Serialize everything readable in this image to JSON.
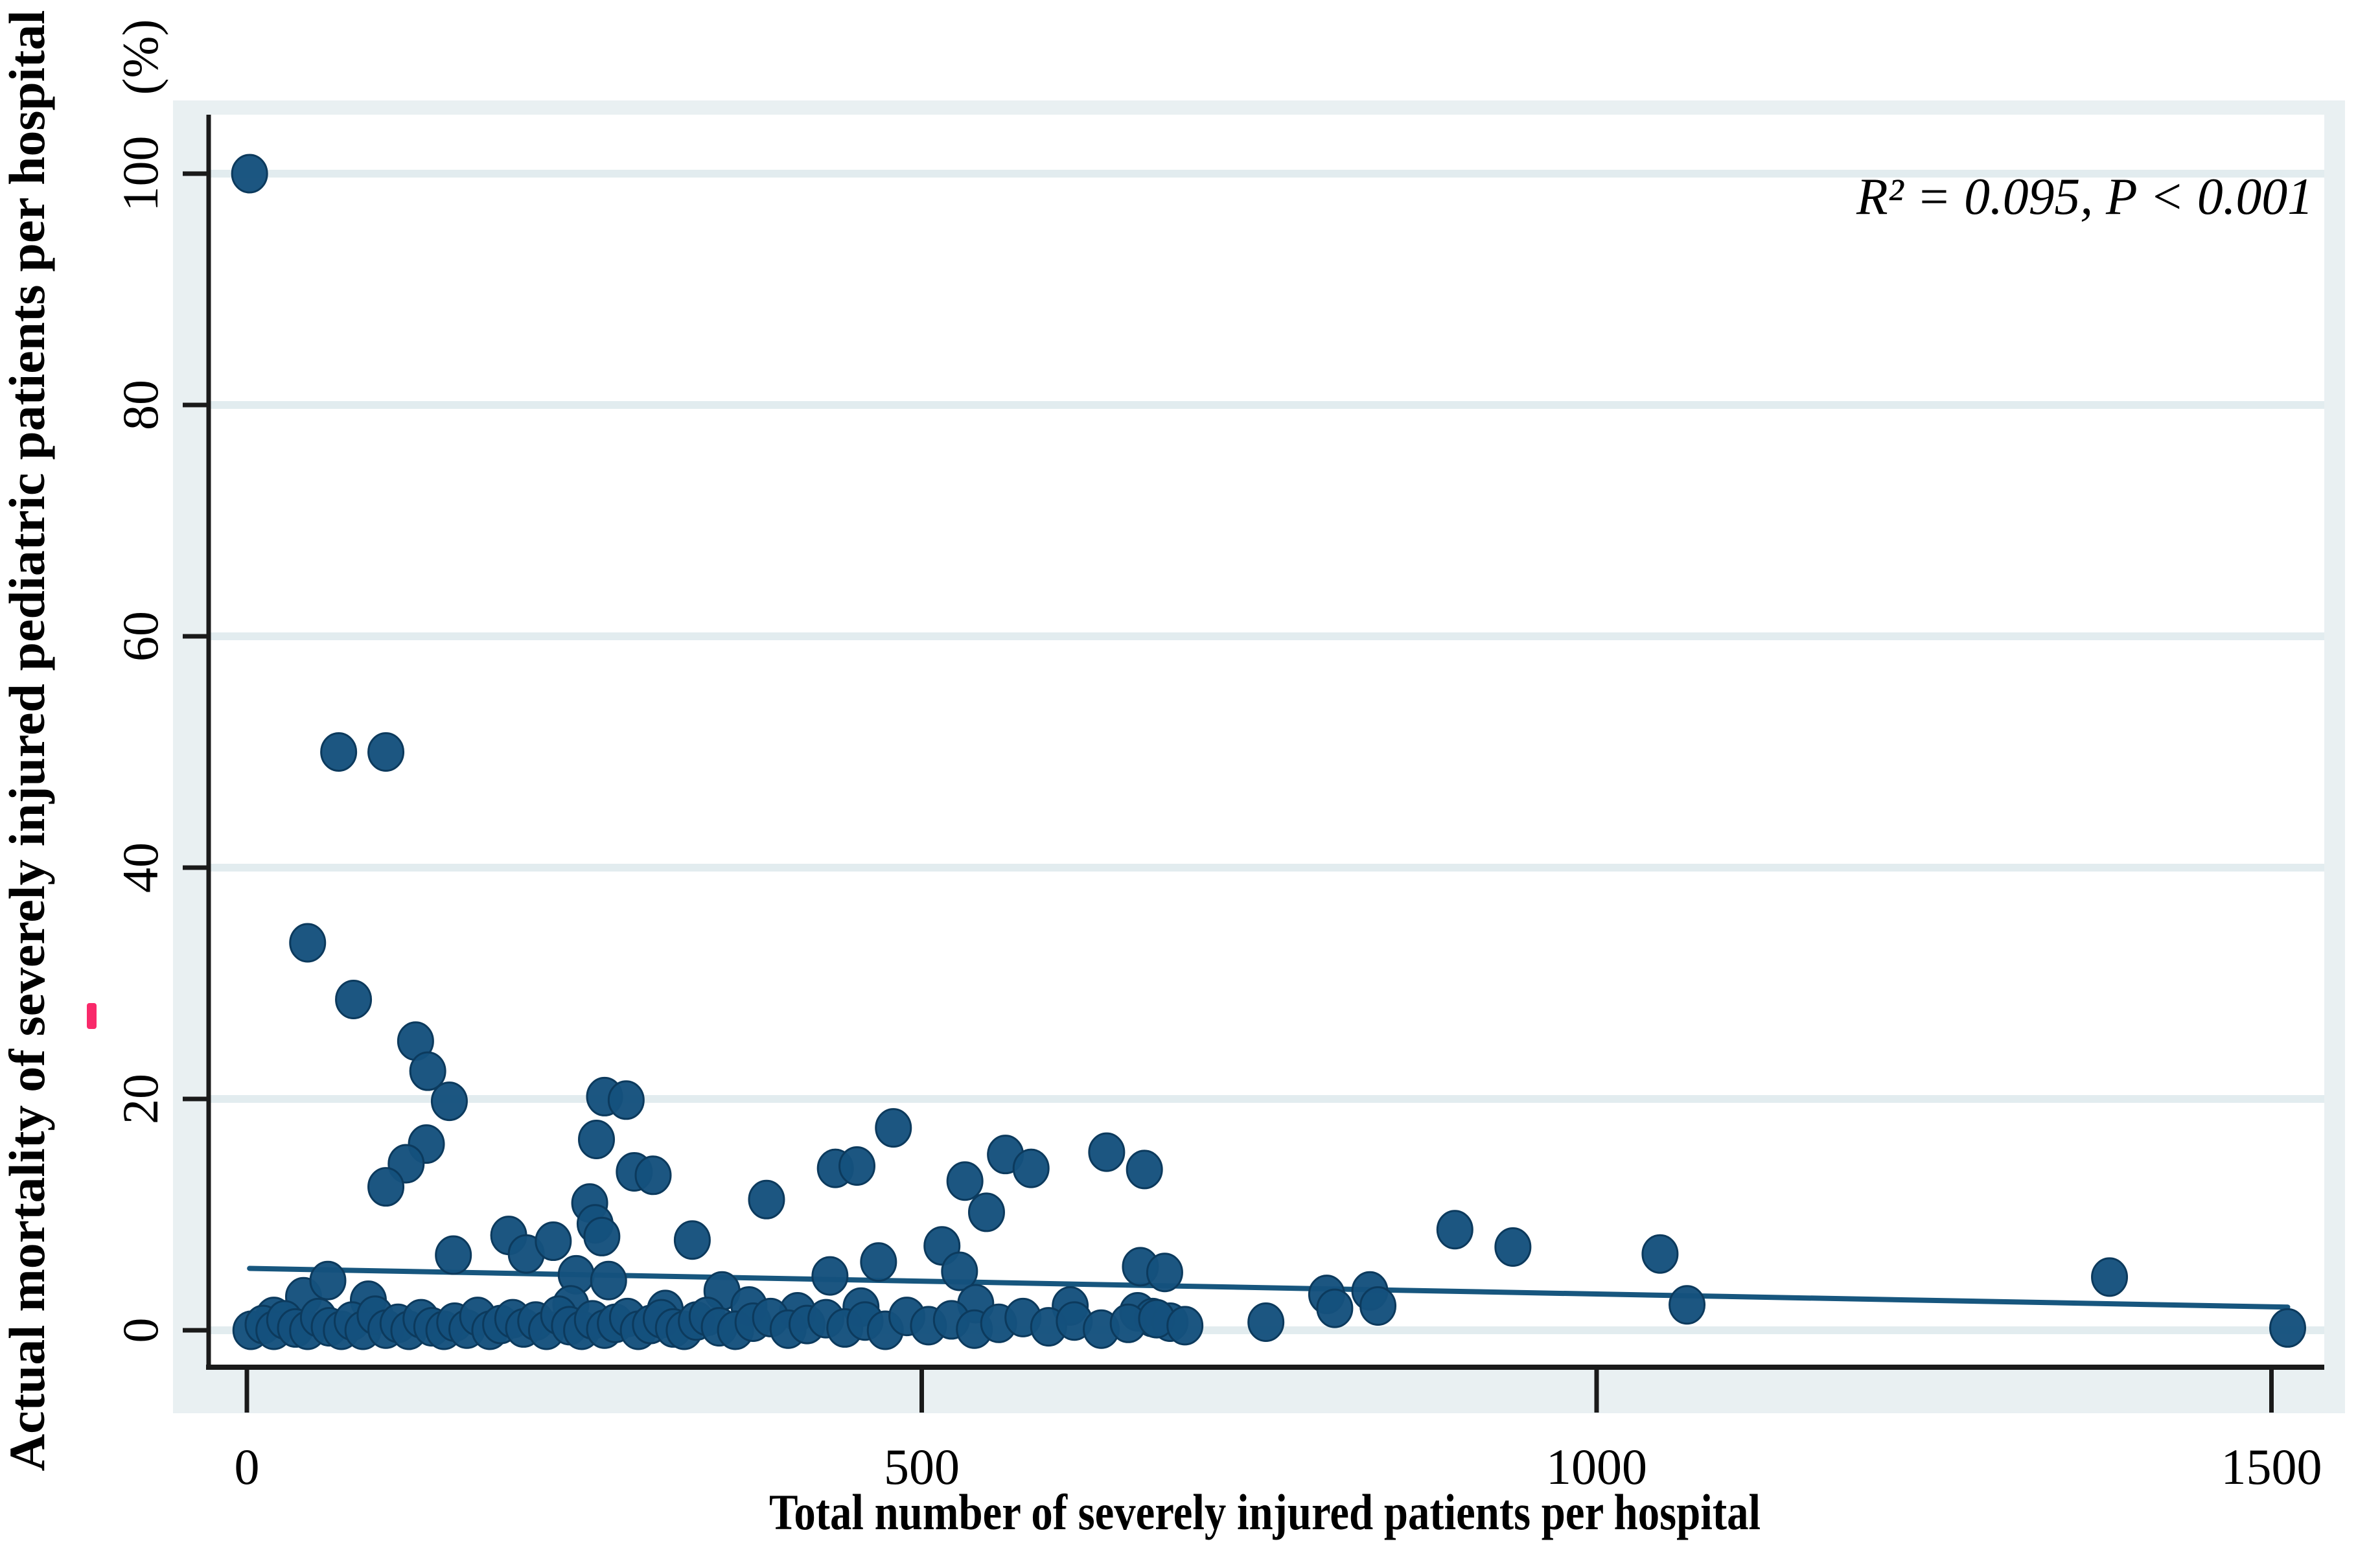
{
  "figure": {
    "background": "#ffffff",
    "graph_region_color": "#e9f0f2",
    "plot_region_color": "#ffffff",
    "axis_color": "#1a1a1a",
    "grid_color": "#e2ecef",
    "marker_color": "#15517d",
    "marker_edge_color": "#0c3a5d",
    "fit_line_color": "#17567e",
    "artifact_color": "#f9296a"
  },
  "chart_data": {
    "type": "scatter",
    "title": "",
    "xlabel": "Total number of severely injured patients per hospital",
    "ylabel": "Actual mortality of severely injured pediatric patients per hospital",
    "y_unit_label": "(%)",
    "annotation": "R² = 0.095, P < 0.001",
    "r_squared": 0.095,
    "p_value": "< 0.001",
    "x_ticks": [
      0,
      500,
      1000,
      1500
    ],
    "y_ticks": [
      0,
      20,
      40,
      60,
      80,
      100
    ],
    "xlim": [
      -28,
      1565
    ],
    "ylim": [
      -3,
      105
    ],
    "grid": true,
    "legend": "none",
    "fit_line": {
      "x1": 2,
      "y1": 5.35,
      "x2": 1512,
      "y2": 2.0
    },
    "points": [
      [
        2,
        100
      ],
      [
        68,
        50
      ],
      [
        103,
        50
      ],
      [
        45,
        33.5
      ],
      [
        79,
        28.6
      ],
      [
        125,
        25
      ],
      [
        134,
        22.4
      ],
      [
        150,
        19.8
      ],
      [
        133,
        16.1
      ],
      [
        118,
        14.4
      ],
      [
        103,
        12.4
      ],
      [
        42,
        2.9
      ],
      [
        60,
        4.3
      ],
      [
        90,
        2.6
      ],
      [
        20,
        1.2
      ],
      [
        153,
        6.5
      ],
      [
        194,
        8.2
      ],
      [
        207,
        6.6
      ],
      [
        227,
        7.7
      ],
      [
        244,
        4.8
      ],
      [
        254,
        11
      ],
      [
        258,
        9.2
      ],
      [
        263,
        8.1
      ],
      [
        268,
        4.3
      ],
      [
        265,
        20.2
      ],
      [
        281,
        19.9
      ],
      [
        259,
        16.5
      ],
      [
        287,
        13.7
      ],
      [
        301,
        13.4
      ],
      [
        330,
        7.8
      ],
      [
        352,
        3.4
      ],
      [
        385,
        11.3
      ],
      [
        436,
        14
      ],
      [
        452,
        14.2
      ],
      [
        479,
        17.5
      ],
      [
        432,
        4.7
      ],
      [
        468,
        5.9
      ],
      [
        515,
        7.3
      ],
      [
        528,
        5.1
      ],
      [
        532,
        12.9
      ],
      [
        548,
        10.2
      ],
      [
        562,
        15.2
      ],
      [
        581,
        14
      ],
      [
        637,
        15.4
      ],
      [
        665,
        13.9
      ],
      [
        662,
        5.5
      ],
      [
        680,
        5
      ],
      [
        660,
        1.6
      ],
      [
        671,
        1.1
      ],
      [
        684,
        0.7
      ],
      [
        755,
        0.7
      ],
      [
        800,
        3.1
      ],
      [
        806,
        1.9
      ],
      [
        832,
        3.4
      ],
      [
        838,
        2.1
      ],
      [
        895,
        8.7
      ],
      [
        938,
        7.2
      ],
      [
        1047,
        6.6
      ],
      [
        1067,
        2.2
      ],
      [
        1380,
        4.6
      ],
      [
        1512,
        0.2
      ],
      [
        240,
        2.2
      ],
      [
        310,
        1.8
      ],
      [
        372,
        2.1
      ],
      [
        408,
        1.6
      ],
      [
        455,
        2
      ],
      [
        540,
        2.3
      ],
      [
        610,
        2.1
      ],
      [
        3,
        0
      ],
      [
        12,
        0.5
      ],
      [
        20,
        0
      ],
      [
        28,
        0.9
      ],
      [
        36,
        0.2
      ],
      [
        45,
        0
      ],
      [
        53,
        1.1
      ],
      [
        61,
        0.3
      ],
      [
        70,
        0
      ],
      [
        78,
        0.8
      ],
      [
        86,
        0
      ],
      [
        95,
        1.3
      ],
      [
        103,
        0.1
      ],
      [
        112,
        0.6
      ],
      [
        120,
        0
      ],
      [
        129,
        1
      ],
      [
        137,
        0.3
      ],
      [
        146,
        0
      ],
      [
        154,
        0.7
      ],
      [
        163,
        0.1
      ],
      [
        171,
        1.2
      ],
      [
        180,
        0
      ],
      [
        188,
        0.5
      ],
      [
        197,
        1
      ],
      [
        205,
        0.2
      ],
      [
        214,
        0.8
      ],
      [
        222,
        0
      ],
      [
        231,
        1.3
      ],
      [
        239,
        0.4
      ],
      [
        248,
        0
      ],
      [
        256,
        0.9
      ],
      [
        265,
        0.1
      ],
      [
        273,
        0.6
      ],
      [
        282,
        1.1
      ],
      [
        290,
        0
      ],
      [
        299,
        0.5
      ],
      [
        307,
        1
      ],
      [
        316,
        0.2
      ],
      [
        324,
        0
      ],
      [
        333,
        0.8
      ],
      [
        341,
        1.2
      ],
      [
        350,
        0.3
      ],
      [
        362,
        0
      ],
      [
        375,
        0.7
      ],
      [
        388,
        1.1
      ],
      [
        401,
        0.1
      ],
      [
        415,
        0.5
      ],
      [
        429,
        1
      ],
      [
        443,
        0.2
      ],
      [
        458,
        0.8
      ],
      [
        473,
        0
      ],
      [
        489,
        1.2
      ],
      [
        505,
        0.4
      ],
      [
        522,
        0.9
      ],
      [
        539,
        0.1
      ],
      [
        557,
        0.6
      ],
      [
        575,
        1.1
      ],
      [
        594,
        0.3
      ],
      [
        613,
        0.8
      ],
      [
        633,
        0.1
      ],
      [
        653,
        0.6
      ],
      [
        674,
        1
      ],
      [
        695,
        0.4
      ]
    ]
  }
}
